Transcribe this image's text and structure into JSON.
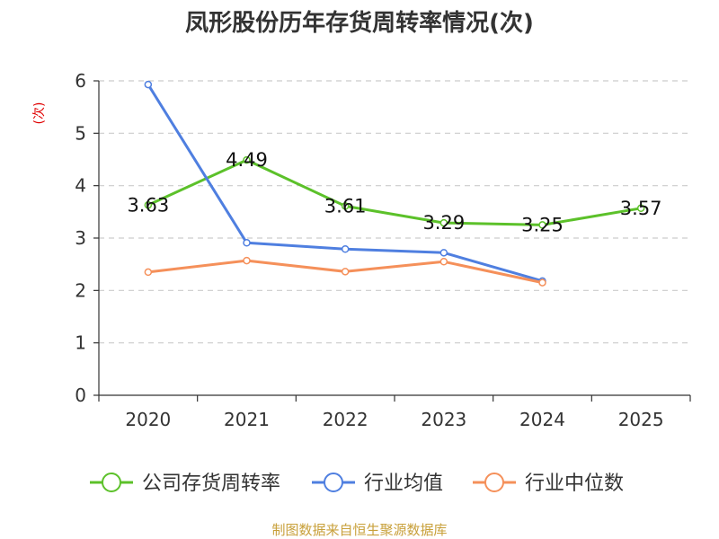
{
  "title": "凤形股份历年存货周转率情况(次)",
  "source": "制图数据来自恒生聚源数据库",
  "chart_data": {
    "type": "line",
    "title": "凤形股份历年存货周转率情况(次)",
    "ylabel": "(次)",
    "xlabel": "",
    "categories": [
      "2020",
      "2021",
      "2022",
      "2023",
      "2024",
      "2025"
    ],
    "ylim": [
      0,
      6
    ],
    "yticks": [
      0,
      1,
      2,
      3,
      4,
      5,
      6
    ],
    "grid": true,
    "legend_position": "bottom",
    "series": [
      {
        "name": "公司存货周转率",
        "color": "#5cc12a",
        "values": [
          3.63,
          4.49,
          3.61,
          3.29,
          3.25,
          3.57
        ],
        "labels": [
          "3.63",
          "4.49",
          "3.61",
          "3.29",
          "3.25",
          "3.57"
        ]
      },
      {
        "name": "行业均值",
        "color": "#4f7fe0",
        "values": [
          5.93,
          2.91,
          2.79,
          2.72,
          2.18,
          null
        ]
      },
      {
        "name": "行业中位数",
        "color": "#f5905a",
        "values": [
          2.35,
          2.57,
          2.36,
          2.55,
          2.15,
          null
        ]
      }
    ]
  }
}
